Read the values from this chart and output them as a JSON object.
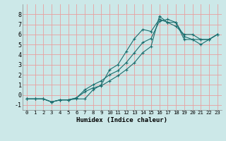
{
  "xlabel": "Humidex (Indice chaleur)",
  "xlim": [
    -0.5,
    23.5
  ],
  "ylim": [
    -1.5,
    9.0
  ],
  "xticks": [
    0,
    1,
    2,
    3,
    4,
    5,
    6,
    7,
    8,
    9,
    10,
    11,
    12,
    13,
    14,
    15,
    16,
    17,
    18,
    19,
    20,
    21,
    22,
    23
  ],
  "yticks": [
    -1,
    0,
    1,
    2,
    3,
    4,
    5,
    6,
    7,
    8
  ],
  "background_color": "#cce8e8",
  "grid_color": "#e8a0a0",
  "line_color": "#1a6e6e",
  "line1_y": [
    -0.4,
    -0.4,
    -0.4,
    -0.7,
    -0.5,
    -0.5,
    -0.4,
    -0.4,
    0.5,
    1.0,
    2.5,
    3.0,
    4.3,
    5.6,
    6.5,
    6.3,
    7.5,
    7.2,
    6.8,
    6.0,
    6.0,
    5.5,
    5.5,
    6.0
  ],
  "line2_y": [
    -0.4,
    -0.4,
    -0.4,
    -0.7,
    -0.5,
    -0.5,
    -0.3,
    0.5,
    1.0,
    1.4,
    2.0,
    2.4,
    3.2,
    4.2,
    5.2,
    5.6,
    7.3,
    7.5,
    7.2,
    5.8,
    5.5,
    5.5,
    5.5,
    6.0
  ],
  "line3_y": [
    -0.4,
    -0.4,
    -0.4,
    -0.7,
    -0.5,
    -0.5,
    -0.3,
    0.3,
    0.7,
    0.9,
    1.4,
    1.9,
    2.5,
    3.2,
    4.2,
    4.8,
    7.8,
    7.2,
    7.2,
    5.5,
    5.5,
    5.0,
    5.5,
    6.0
  ],
  "font_size_x": 5.2,
  "font_size_y": 6.0,
  "font_size_xlabel": 6.5,
  "lw": 0.8,
  "ms": 3.0
}
